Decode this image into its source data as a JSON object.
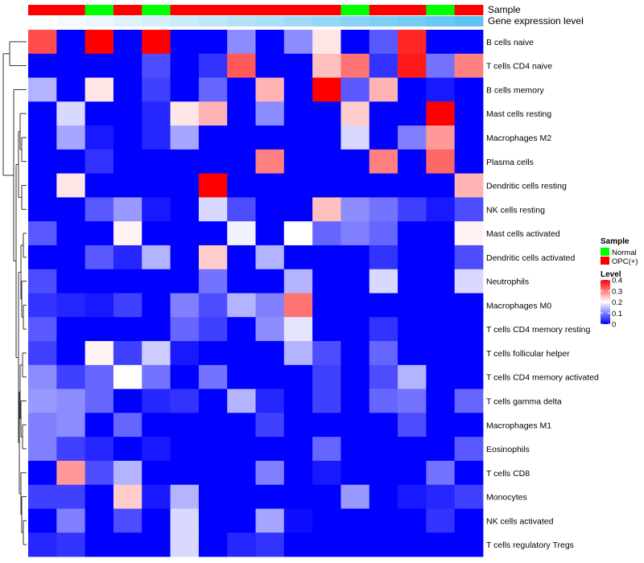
{
  "chart_data": {
    "type": "heatmap",
    "color_scale": {
      "low": "#0000FF",
      "mid": "#FFFFFF",
      "high": "#FF0000",
      "min": 0,
      "mid_value": 0.2,
      "max": 0.4
    },
    "column_annotations": [
      {
        "name": "Sample",
        "values": [
          "OPC(+)",
          "OPC(+)",
          "Normal",
          "OPC(+)",
          "Normal",
          "OPC(+)",
          "OPC(+)",
          "OPC(+)",
          "OPC(+)",
          "OPC(+)",
          "OPC(+)",
          "Normal",
          "OPC(+)",
          "OPC(+)",
          "Normal",
          "OPC(+)"
        ]
      },
      {
        "name": "Gene expression level",
        "values": [
          0.0,
          0.067,
          0.133,
          0.2,
          0.267,
          0.333,
          0.4,
          0.467,
          0.533,
          0.6,
          0.667,
          0.733,
          0.8,
          0.867,
          0.933,
          1.0
        ]
      }
    ],
    "rows": [
      {
        "label": "B cells naive",
        "values": [
          0.34,
          0,
          0.4,
          0,
          0.4,
          0,
          0,
          0.11,
          0,
          0.11,
          0.22,
          0,
          0.07,
          0.37,
          0,
          0
        ]
      },
      {
        "label": "T cells CD4 naive",
        "values": [
          0,
          0,
          0,
          0,
          0.06,
          0,
          0.04,
          0.33,
          0,
          0,
          0.25,
          0.31,
          0.04,
          0.38,
          0.09,
          0.3
        ]
      },
      {
        "label": "B cells memory",
        "values": [
          0.14,
          0,
          0.22,
          0,
          0.05,
          0,
          0.08,
          0,
          0.26,
          0,
          0.4,
          0.07,
          0.26,
          0,
          0.02,
          0
        ]
      },
      {
        "label": "Mast cells resting",
        "values": [
          0,
          0.17,
          0,
          0,
          0.03,
          0.22,
          0.26,
          0,
          0.11,
          0,
          0,
          0.24,
          0,
          0,
          0.4,
          0
        ]
      },
      {
        "label": "Macrophages M2",
        "values": [
          0,
          0.13,
          0.02,
          0,
          0.03,
          0.13,
          0,
          0,
          0,
          0,
          0,
          0.17,
          0,
          0.1,
          0.28,
          0
        ]
      },
      {
        "label": "Plasma cells",
        "values": [
          0,
          0,
          0.04,
          0,
          0,
          0,
          0,
          0,
          0.3,
          0,
          0,
          0,
          0.3,
          0,
          0.32,
          0
        ]
      },
      {
        "label": "Dendritic cells resting",
        "values": [
          0,
          0.22,
          0,
          0,
          0,
          0,
          0.4,
          0,
          0,
          0,
          0,
          0,
          0,
          0,
          0,
          0.26
        ]
      },
      {
        "label": "NK cells resting",
        "values": [
          0,
          0,
          0.07,
          0.12,
          0.02,
          0,
          0.17,
          0.06,
          0,
          0,
          0.25,
          0.11,
          0.09,
          0.05,
          0.02,
          0.06
        ]
      },
      {
        "label": "Mast cells activated",
        "values": [
          0.07,
          0,
          0,
          0.21,
          0,
          0,
          0,
          0.19,
          0,
          0.2,
          0.08,
          0.1,
          0.08,
          0,
          0,
          0.21
        ]
      },
      {
        "label": "Dendritic cells activated",
        "values": [
          0,
          0,
          0.07,
          0.03,
          0.14,
          0,
          0.24,
          0,
          0.14,
          0,
          0,
          0,
          0.04,
          0,
          0,
          0.06
        ]
      },
      {
        "label": "Neutrophils",
        "values": [
          0.06,
          0,
          0,
          0,
          0,
          0,
          0.09,
          0,
          0,
          0.14,
          0,
          0,
          0.17,
          0,
          0,
          0.17
        ]
      },
      {
        "label": "Macrophages M0",
        "values": [
          0.04,
          0.03,
          0.02,
          0.05,
          0,
          0.1,
          0.06,
          0.14,
          0.1,
          0.31,
          0,
          0,
          0,
          0,
          0,
          0
        ]
      },
      {
        "label": "T cells CD4 memory resting",
        "values": [
          0.07,
          0,
          0,
          0,
          0,
          0.08,
          0.05,
          0,
          0.11,
          0.18,
          0,
          0,
          0.04,
          0,
          0,
          0
        ]
      },
      {
        "label": "T cells follicular helper",
        "values": [
          0.05,
          0,
          0.21,
          0.05,
          0.16,
          0.02,
          0,
          0,
          0,
          0.14,
          0.06,
          0,
          0.08,
          0,
          0,
          0
        ]
      },
      {
        "label": "T cells CD4 memory activated",
        "values": [
          0.11,
          0.05,
          0.08,
          0.2,
          0.09,
          0,
          0.09,
          0,
          0,
          0,
          0.05,
          0,
          0.06,
          0.14,
          0,
          0
        ]
      },
      {
        "label": "T cells gamma delta",
        "values": [
          0.12,
          0.11,
          0.08,
          0,
          0.03,
          0.04,
          0,
          0.14,
          0.03,
          0,
          0.05,
          0,
          0.08,
          0.09,
          0,
          0.08
        ]
      },
      {
        "label": "Macrophages M1",
        "values": [
          0.1,
          0.11,
          0,
          0.08,
          0,
          0,
          0,
          0,
          0.05,
          0,
          0,
          0,
          0,
          0.06,
          0,
          0
        ]
      },
      {
        "label": "Eosinophils",
        "values": [
          0.1,
          0.05,
          0.03,
          0,
          0.02,
          0,
          0,
          0,
          0,
          0,
          0.08,
          0,
          0,
          0,
          0,
          0.07
        ]
      },
      {
        "label": "T cells CD8",
        "values": [
          0,
          0.28,
          0.06,
          0.14,
          0,
          0,
          0,
          0,
          0.1,
          0,
          0.02,
          0,
          0,
          0,
          0.09,
          0
        ]
      },
      {
        "label": "Monocytes",
        "values": [
          0.05,
          0.05,
          0,
          0.24,
          0.02,
          0.14,
          0,
          0,
          0,
          0,
          0,
          0.12,
          0,
          0.02,
          0.03,
          0.05
        ]
      },
      {
        "label": "NK cells activated",
        "values": [
          0,
          0.1,
          0,
          0.06,
          0,
          0.17,
          0,
          0,
          0.13,
          0.01,
          0,
          0,
          0,
          0,
          0.04,
          0
        ]
      },
      {
        "label": "T cells regulatory  Tregs",
        "values": [
          0.03,
          0.04,
          0,
          0,
          0,
          0.17,
          0,
          0.03,
          0.04,
          0,
          0,
          0,
          0,
          0,
          0,
          0
        ]
      }
    ],
    "legend": {
      "sample_title": "Sample",
      "sample_entries": [
        {
          "label": "Normal",
          "color": "#00FF00"
        },
        {
          "label": "OPC(+)",
          "color": "#FF0000"
        }
      ],
      "level_title": "Level",
      "level_ticks": [
        {
          "label": "0.4",
          "value": 0.4
        },
        {
          "label": "0.3",
          "value": 0.3
        },
        {
          "label": "0.2",
          "value": 0.2
        },
        {
          "label": "0.1",
          "value": 0.1
        },
        {
          "label": "0",
          "value": 0
        }
      ]
    },
    "annotation_colors": {
      "gene_level_low": "#FFFFFF",
      "gene_level_high": "#5FC3F2"
    }
  }
}
